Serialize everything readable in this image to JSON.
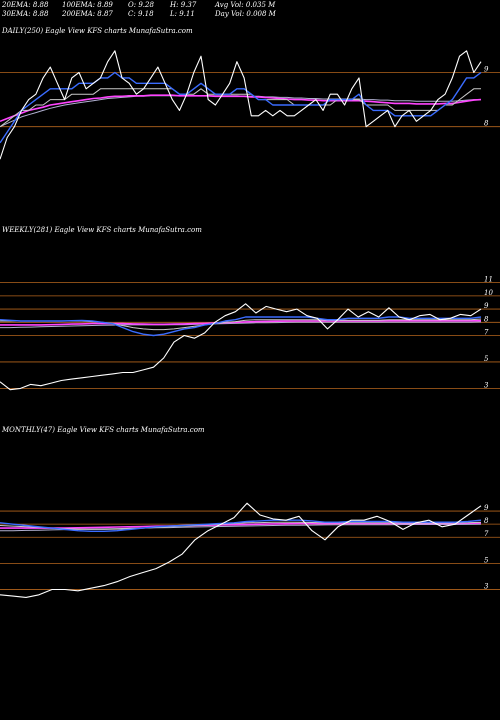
{
  "header": {
    "row1": [
      "20EMA: 8.88",
      "100EMA: 8.89",
      "O: 9.28",
      "H: 9.37",
      "Avg Vol: 0.035 M"
    ],
    "row2": [
      "30EMA: 8.88",
      "200EMA: 8.87",
      "C: 9.18",
      "L: 9.11",
      "Day Vol: 0.008 M"
    ],
    "symbol": "KFS"
  },
  "colors": {
    "price": "#ffffff",
    "ema_fast": "#3a6cff",
    "ema_mid": "#c9c9c9",
    "ema_slow": "#ff44ff",
    "ema_long": "#b0b0d0",
    "grid": "#b5651d"
  },
  "chart_data": [
    {
      "type": "line",
      "title": "DAILY(250) Eagle   View  KFS charts MunafaSutra.com",
      "yticks": [
        "9",
        "8"
      ],
      "series": [
        {
          "key": "price",
          "values": [
            7.4,
            7.8,
            8.0,
            8.3,
            8.5,
            8.6,
            8.9,
            9.1,
            8.8,
            8.5,
            8.9,
            9.0,
            8.7,
            8.8,
            8.9,
            9.2,
            9.4,
            8.9,
            8.8,
            8.6,
            8.7,
            8.9,
            9.1,
            8.8,
            8.5,
            8.3,
            8.6,
            9.0,
            9.3,
            8.5,
            8.4,
            8.6,
            8.8,
            9.2,
            8.9,
            8.2,
            8.2,
            8.3,
            8.2,
            8.3,
            8.2,
            8.2,
            8.3,
            8.4,
            8.5,
            8.3,
            8.6,
            8.6,
            8.4,
            8.7,
            8.9,
            8.0,
            8.1,
            8.2,
            8.3,
            8.0,
            8.2,
            8.3,
            8.1,
            8.2,
            8.3,
            8.5,
            8.6,
            8.9,
            9.3,
            9.4,
            9.0,
            9.2
          ]
        },
        {
          "key": "ema_fast",
          "values": [
            7.7,
            7.9,
            8.1,
            8.3,
            8.4,
            8.5,
            8.6,
            8.7,
            8.7,
            8.7,
            8.7,
            8.8,
            8.8,
            8.8,
            8.9,
            8.9,
            9.0,
            8.9,
            8.9,
            8.8,
            8.8,
            8.8,
            8.8,
            8.8,
            8.7,
            8.6,
            8.6,
            8.7,
            8.8,
            8.7,
            8.6,
            8.6,
            8.6,
            8.7,
            8.7,
            8.6,
            8.5,
            8.5,
            8.4,
            8.4,
            8.4,
            8.4,
            8.4,
            8.4,
            8.4,
            8.4,
            8.5,
            8.5,
            8.5,
            8.5,
            8.6,
            8.4,
            8.3,
            8.3,
            8.3,
            8.2,
            8.2,
            8.2,
            8.2,
            8.2,
            8.2,
            8.3,
            8.4,
            8.5,
            8.7,
            8.9,
            8.9,
            9.0
          ]
        },
        {
          "key": "ema_mid",
          "values": [
            8.0,
            8.1,
            8.2,
            8.3,
            8.3,
            8.4,
            8.4,
            8.5,
            8.5,
            8.5,
            8.6,
            8.6,
            8.6,
            8.6,
            8.7,
            8.7,
            8.7,
            8.7,
            8.7,
            8.7,
            8.7,
            8.7,
            8.7,
            8.7,
            8.7,
            8.6,
            8.6,
            8.6,
            8.7,
            8.6,
            8.6,
            8.6,
            8.6,
            8.6,
            8.6,
            8.6,
            8.5,
            8.5,
            8.5,
            8.5,
            8.5,
            8.4,
            8.4,
            8.4,
            8.4,
            8.4,
            8.4,
            8.5,
            8.5,
            8.5,
            8.5,
            8.4,
            8.4,
            8.4,
            8.4,
            8.3,
            8.3,
            8.3,
            8.3,
            8.3,
            8.3,
            8.3,
            8.4,
            8.4,
            8.5,
            8.6,
            8.7,
            8.7
          ]
        },
        {
          "key": "ema_slow",
          "values": [
            8.1,
            8.15,
            8.2,
            8.25,
            8.3,
            8.33,
            8.36,
            8.4,
            8.42,
            8.44,
            8.46,
            8.48,
            8.5,
            8.52,
            8.53,
            8.55,
            8.56,
            8.56,
            8.57,
            8.57,
            8.57,
            8.58,
            8.58,
            8.58,
            8.58,
            8.57,
            8.57,
            8.57,
            8.57,
            8.57,
            8.56,
            8.56,
            8.56,
            8.56,
            8.56,
            8.55,
            8.55,
            8.54,
            8.53,
            8.52,
            8.51,
            8.5,
            8.5,
            8.49,
            8.49,
            8.48,
            8.48,
            8.48,
            8.48,
            8.48,
            8.48,
            8.47,
            8.46,
            8.45,
            8.44,
            8.43,
            8.43,
            8.43,
            8.42,
            8.42,
            8.42,
            8.42,
            8.43,
            8.43,
            8.45,
            8.47,
            8.49,
            8.5
          ]
        },
        {
          "key": "ema_long",
          "values": [
            8.0,
            8.06,
            8.12,
            8.18,
            8.22,
            8.26,
            8.3,
            8.34,
            8.37,
            8.4,
            8.42,
            8.44,
            8.46,
            8.48,
            8.5,
            8.52,
            8.53,
            8.54,
            8.55,
            8.56,
            8.56,
            8.57,
            8.57,
            8.57,
            8.57,
            8.57,
            8.57,
            8.57,
            8.57,
            8.57,
            8.57,
            8.57,
            8.57,
            8.57,
            8.56,
            8.56,
            8.56,
            8.55,
            8.55,
            8.54,
            8.54,
            8.53,
            8.53,
            8.52,
            8.52,
            8.51,
            8.51,
            8.51,
            8.51,
            8.51,
            8.51,
            8.5,
            8.5,
            8.49,
            8.49,
            8.48,
            8.48,
            8.48,
            8.47,
            8.47,
            8.47,
            8.47,
            8.47,
            8.47,
            8.48,
            8.49,
            8.5,
            8.5
          ]
        }
      ]
    },
    {
      "type": "line",
      "title": "WEEKLY(281) Eagle   View  KFS charts MunafaSutra.com",
      "yticks": [
        "11",
        "10",
        "9",
        "8",
        "7",
        "5",
        "3"
      ],
      "series": [
        {
          "key": "price",
          "values": [
            3.5,
            2.9,
            3.0,
            3.3,
            3.2,
            3.4,
            3.6,
            3.7,
            3.8,
            3.9,
            4.0,
            4.1,
            4.2,
            4.2,
            4.4,
            4.6,
            5.3,
            6.5,
            7.0,
            6.8,
            7.2,
            8.0,
            8.5,
            8.8,
            9.4,
            8.7,
            9.2,
            9.0,
            8.8,
            9.0,
            8.5,
            8.3,
            7.5,
            8.2,
            9.0,
            8.4,
            8.8,
            8.4,
            9.1,
            8.4,
            8.2,
            8.5,
            8.6,
            8.2,
            8.3,
            8.6,
            8.5,
            9.0
          ]
        },
        {
          "key": "ema_fast",
          "values": [
            8.2,
            8.15,
            8.1,
            8.1,
            8.1,
            8.1,
            8.1,
            8.12,
            8.14,
            8.1,
            8.0,
            7.9,
            7.6,
            7.3,
            7.1,
            7.0,
            7.1,
            7.3,
            7.5,
            7.6,
            7.8,
            7.9,
            8.1,
            8.2,
            8.4,
            8.4,
            8.4,
            8.4,
            8.4,
            8.4,
            8.4,
            8.3,
            8.2,
            8.2,
            8.3,
            8.3,
            8.3,
            8.3,
            8.4,
            8.4,
            8.3,
            8.3,
            8.3,
            8.3,
            8.3,
            8.3,
            8.3,
            8.4
          ]
        },
        {
          "key": "ema_mid",
          "values": [
            8.1,
            8.1,
            8.1,
            8.1,
            8.1,
            8.1,
            8.1,
            8.1,
            8.1,
            8.05,
            8.0,
            7.9,
            7.75,
            7.6,
            7.5,
            7.45,
            7.45,
            7.5,
            7.6,
            7.7,
            7.8,
            7.9,
            8.0,
            8.05,
            8.15,
            8.2,
            8.2,
            8.2,
            8.2,
            8.2,
            8.2,
            8.2,
            8.15,
            8.15,
            8.15,
            8.15,
            8.15,
            8.15,
            8.2,
            8.2,
            8.2,
            8.2,
            8.2,
            8.2,
            8.2,
            8.2,
            8.2,
            8.25
          ]
        },
        {
          "key": "ema_slow",
          "values": [
            7.8,
            7.8,
            7.8,
            7.8,
            7.8,
            7.82,
            7.84,
            7.86,
            7.88,
            7.9,
            7.9,
            7.9,
            7.9,
            7.88,
            7.86,
            7.85,
            7.85,
            7.86,
            7.88,
            7.9,
            7.92,
            7.95,
            7.98,
            8.0,
            8.03,
            8.05,
            8.07,
            8.08,
            8.09,
            8.1,
            8.1,
            8.1,
            8.1,
            8.1,
            8.1,
            8.1,
            8.1,
            8.1,
            8.11,
            8.11,
            8.11,
            8.11,
            8.11,
            8.11,
            8.11,
            8.11,
            8.11,
            8.12
          ]
        },
        {
          "key": "ema_long",
          "values": [
            7.6,
            7.6,
            7.62,
            7.64,
            7.66,
            7.68,
            7.7,
            7.72,
            7.74,
            7.76,
            7.78,
            7.79,
            7.8,
            7.8,
            7.8,
            7.8,
            7.8,
            7.81,
            7.82,
            7.84,
            7.86,
            7.88,
            7.9,
            7.92,
            7.94,
            7.96,
            7.97,
            7.98,
            7.99,
            8.0,
            8.0,
            8.0,
            8.0,
            8.0,
            8.0,
            8.0,
            8.0,
            8.0,
            8.01,
            8.01,
            8.01,
            8.01,
            8.01,
            8.01,
            8.01,
            8.01,
            8.01,
            8.02
          ]
        }
      ]
    },
    {
      "type": "line",
      "title": "MONTHLY(47) Eagle   View  KFS charts MunafaSutra.com",
      "yticks": [
        "9",
        "8",
        "7",
        "5",
        "3"
      ],
      "series": [
        {
          "key": "price",
          "values": [
            2.6,
            2.5,
            2.4,
            2.6,
            3.0,
            3.0,
            2.9,
            3.1,
            3.3,
            3.6,
            4.0,
            4.3,
            4.6,
            5.1,
            5.7,
            6.8,
            7.5,
            8.0,
            8.5,
            9.6,
            8.7,
            8.4,
            8.3,
            8.6,
            7.5,
            6.8,
            7.8,
            8.3,
            8.3,
            8.6,
            8.2,
            7.6,
            8.1,
            8.3,
            7.8,
            8.0,
            8.7,
            9.4
          ]
        },
        {
          "key": "ema_fast",
          "values": [
            8.1,
            8.0,
            7.9,
            7.8,
            7.7,
            7.6,
            7.5,
            7.45,
            7.45,
            7.5,
            7.6,
            7.7,
            7.8,
            7.85,
            7.9,
            7.95,
            8.0,
            8.05,
            8.1,
            8.2,
            8.25,
            8.3,
            8.3,
            8.3,
            8.25,
            8.15,
            8.15,
            8.2,
            8.2,
            8.2,
            8.2,
            8.15,
            8.15,
            8.15,
            8.15,
            8.15,
            8.2,
            8.3
          ]
        },
        {
          "key": "ema_mid",
          "values": [
            7.9,
            7.85,
            7.8,
            7.75,
            7.7,
            7.65,
            7.62,
            7.6,
            7.6,
            7.62,
            7.65,
            7.7,
            7.75,
            7.8,
            7.85,
            7.9,
            7.95,
            8.0,
            8.05,
            8.1,
            8.12,
            8.14,
            8.15,
            8.15,
            8.13,
            8.1,
            8.1,
            8.1,
            8.1,
            8.1,
            8.1,
            8.08,
            8.08,
            8.08,
            8.08,
            8.08,
            8.1,
            8.15
          ]
        },
        {
          "key": "ema_slow",
          "values": [
            7.7,
            7.7,
            7.7,
            7.7,
            7.7,
            7.7,
            7.72,
            7.74,
            7.76,
            7.78,
            7.8,
            7.82,
            7.84,
            7.86,
            7.88,
            7.9,
            7.92,
            7.94,
            7.96,
            7.98,
            8.0,
            8.02,
            8.03,
            8.04,
            8.04,
            8.04,
            8.05,
            8.05,
            8.06,
            8.06,
            8.06,
            8.06,
            8.06,
            8.06,
            8.06,
            8.06,
            8.07,
            8.08
          ]
        },
        {
          "key": "ema_long",
          "values": [
            7.5,
            7.5,
            7.52,
            7.54,
            7.56,
            7.58,
            7.6,
            7.62,
            7.64,
            7.66,
            7.68,
            7.7,
            7.72,
            7.74,
            7.76,
            7.78,
            7.8,
            7.82,
            7.84,
            7.86,
            7.88,
            7.9,
            7.91,
            7.92,
            7.93,
            7.94,
            7.95,
            7.95,
            7.96,
            7.96,
            7.96,
            7.97,
            7.97,
            7.97,
            7.97,
            7.97,
            7.98,
            7.99
          ]
        }
      ]
    }
  ]
}
